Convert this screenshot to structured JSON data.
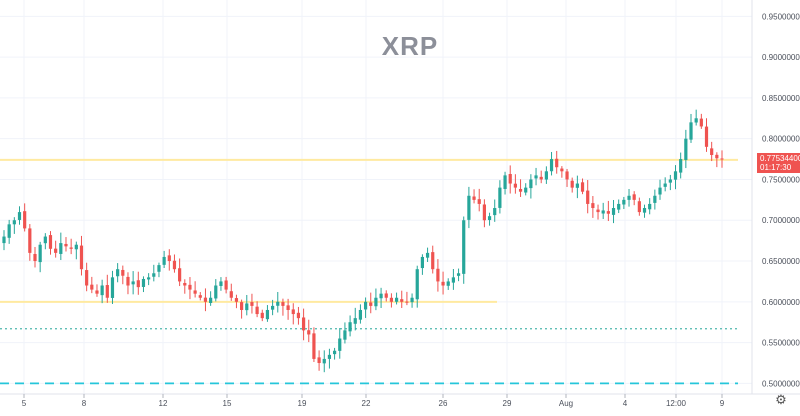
{
  "chart_data": {
    "type": "candlestick",
    "title": "XRP",
    "x_tick_labels": [
      "5",
      "8",
      "12",
      "15",
      "19",
      "22",
      "26",
      "29",
      "Aug",
      "4",
      "12:00",
      "9"
    ],
    "y_tick_labels": [
      "0.50000000",
      "0.55000000",
      "0.60000000",
      "0.65000000",
      "0.70000000",
      "0.75000000",
      "0.80000000",
      "0.85000000",
      "0.90000000",
      "0.95000000"
    ],
    "ylim": [
      0.487,
      0.97
    ],
    "grid": true,
    "current_price": "0.77534400",
    "countdown": "01:17:30",
    "colors": {
      "up": "#26a69a",
      "down": "#ef5350",
      "price_badge": "#ef5350",
      "support_line": "#ffeaa0",
      "dotted_line": "#4db6ac",
      "dashed_line": "#26c6da"
    },
    "horizontal_lines": [
      {
        "price": 0.774,
        "style": "solid",
        "color": "#ffeaa0",
        "from": "start",
        "to": "end"
      },
      {
        "price": 0.6,
        "style": "solid",
        "color": "#ffeaa0",
        "from": "start",
        "to": "29"
      },
      {
        "price": 0.567,
        "style": "dotted",
        "color": "#4db6ac",
        "from": "start",
        "to": "end"
      },
      {
        "price": 0.5,
        "style": "dashed",
        "color": "#26c6da",
        "from": "start",
        "to": "end"
      }
    ],
    "price_path": [
      0.68,
      0.695,
      0.7,
      0.71,
      0.69,
      0.66,
      0.65,
      0.67,
      0.68,
      0.665,
      0.66,
      0.672,
      0.668,
      0.665,
      0.67,
      0.64,
      0.62,
      0.615,
      0.61,
      0.62,
      0.605,
      0.63,
      0.64,
      0.632,
      0.62,
      0.625,
      0.618,
      0.628,
      0.63,
      0.635,
      0.645,
      0.655,
      0.65,
      0.64,
      0.625,
      0.62,
      0.615,
      0.61,
      0.605,
      0.6,
      0.605,
      0.62,
      0.625,
      0.615,
      0.605,
      0.6,
      0.59,
      0.598,
      0.595,
      0.585,
      0.58,
      0.59,
      0.595,
      0.6,
      0.595,
      0.59,
      0.585,
      0.58,
      0.565,
      0.56,
      0.53,
      0.525,
      0.53,
      0.535,
      0.54,
      0.555,
      0.565,
      0.575,
      0.58,
      0.59,
      0.6,
      0.595,
      0.605,
      0.61,
      0.605,
      0.6,
      0.605,
      0.6,
      0.6,
      0.605,
      0.64,
      0.655,
      0.66,
      0.64,
      0.625,
      0.62,
      0.625,
      0.63,
      0.635,
      0.7,
      0.73,
      0.725,
      0.72,
      0.7,
      0.705,
      0.715,
      0.74,
      0.755,
      0.745,
      0.74,
      0.735,
      0.74,
      0.75,
      0.755,
      0.75,
      0.76,
      0.775,
      0.765,
      0.76,
      0.75,
      0.74,
      0.745,
      0.735,
      0.72,
      0.715,
      0.71,
      0.712,
      0.708,
      0.715,
      0.72,
      0.725,
      0.73,
      0.725,
      0.71,
      0.715,
      0.72,
      0.73,
      0.74,
      0.745,
      0.75,
      0.76,
      0.775,
      0.8,
      0.82,
      0.825,
      0.815,
      0.79,
      0.78,
      0.776,
      0.775
    ]
  },
  "toolbar": {
    "settings_icon": "gear-icon"
  }
}
